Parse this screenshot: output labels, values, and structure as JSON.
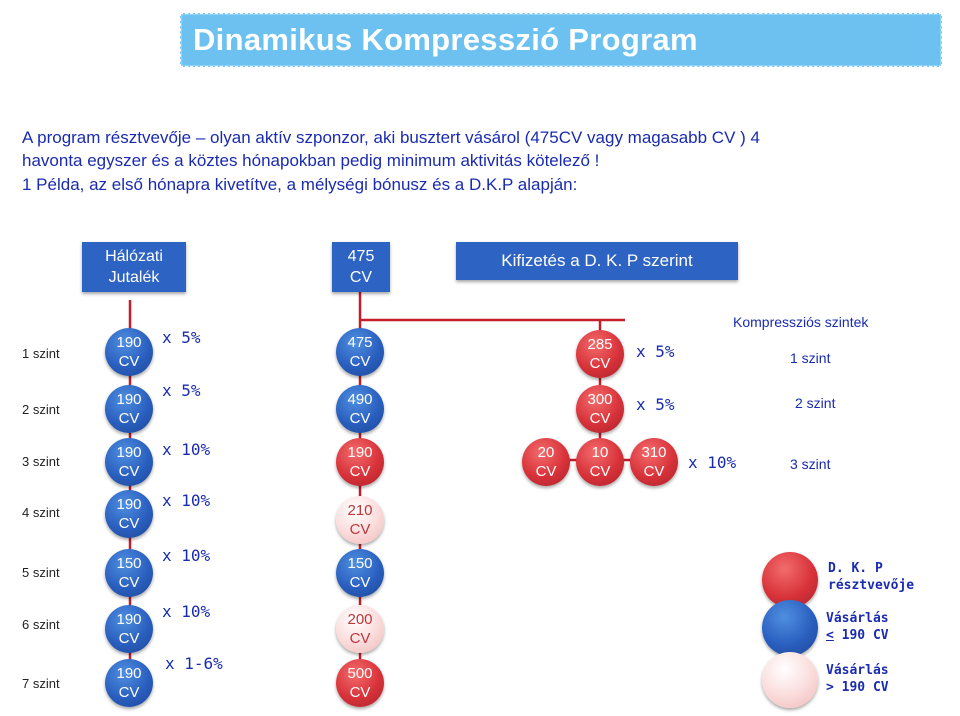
{
  "title": "Dinamikus Kompresszió Program",
  "intro": {
    "line1": "A program résztvevője – olyan aktív szponzor, aki busztert vásárol (475CV vagy magasabb CV ) 4",
    "line2": "havonta egyszer és a köztes hónapokban pedig minimum aktivitás kötelező !",
    "line3": "1 Példa, az első hónapra kivetítve, a mélységi bónusz és a D.K.P alapján:"
  },
  "headers": {
    "halozati": "Hálózati Jutalék",
    "top_value": "475",
    "top_unit": "CV",
    "kifizetes": "Kifizetés a D. K. P szerint"
  },
  "levels": [
    {
      "label": "1 szint",
      "value": "190",
      "unit": "CV",
      "mult": "x 5%",
      "result": "475",
      "result_unit": "CV"
    },
    {
      "label": "2 szint",
      "value": "190",
      "unit": "CV",
      "mult": "x 5%",
      "result": "490",
      "result_unit": "CV"
    },
    {
      "label": "3 szint",
      "value": "190",
      "unit": "CV",
      "mult": "x 10%",
      "result": "190",
      "result_unit": "CV"
    },
    {
      "label": "4 szint",
      "value": "190",
      "unit": "CV",
      "mult": "x 10%",
      "result": "210",
      "result_unit": "CV"
    },
    {
      "label": "5 szint",
      "value": "150",
      "unit": "CV",
      "mult": "x 10%",
      "result": "150",
      "result_unit": "CV"
    },
    {
      "label": "6 szint",
      "value": "190",
      "unit": "CV",
      "mult": "x 10%",
      "result": "200",
      "result_unit": "CV"
    },
    {
      "label": "7 szint",
      "value": "190",
      "unit": "CV",
      "mult": "x 1-6%",
      "result": "500",
      "result_unit": "CV"
    }
  ],
  "compression": {
    "title": "Kompressziós szintek",
    "row1": {
      "value": "285",
      "unit": "CV",
      "mult": "x 5%",
      "level": "1 szint"
    },
    "row2": {
      "value": "300",
      "unit": "CV",
      "mult": "x 5%",
      "level": "2 szint"
    },
    "row3": {
      "a": "20",
      "b": "10",
      "c": "310",
      "unit": "CV",
      "mult": "x 10%",
      "level": "3 szint"
    }
  },
  "legend": {
    "red": "D. K. P résztvevője",
    "red_line1": "D. K. P",
    "red_line2": "résztvevője",
    "blue_line1": "Vásárlás",
    "blue_line2": "< 190 CV",
    "pink_line1": "Vásárlás",
    "pink_line2": "> 190 CV"
  },
  "colors": {
    "title_bg": "#6cc1f0",
    "text_blue": "#1a2bb0",
    "circle_blue": "#2a5fbf",
    "circle_red": "#d8323a",
    "circle_pink": "#fbdede",
    "line_red": "#c21f2a"
  }
}
